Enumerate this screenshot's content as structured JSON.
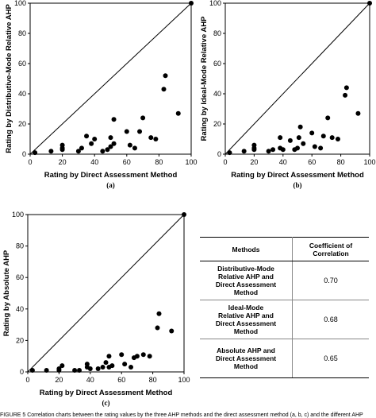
{
  "chart_data": [
    {
      "type": "scatter",
      "panel_label": "(a)",
      "xlabel": "Rating by Direct Assessment Method",
      "ylabel": "Rating by Distributive-Mode Relative AHP",
      "xlim": [
        0,
        100
      ],
      "ylim": [
        0,
        100
      ],
      "xticks": [
        0,
        20,
        40,
        60,
        80,
        100
      ],
      "yticks": [
        0,
        20,
        40,
        60,
        80,
        100
      ],
      "reference_line": "y = x",
      "x": [
        3,
        13,
        20,
        20,
        20,
        30,
        32,
        35,
        38,
        40,
        45,
        48,
        50,
        50,
        52,
        52,
        60,
        62,
        65,
        68,
        70,
        75,
        78,
        83,
        84,
        92,
        100
      ],
      "y": [
        1,
        2,
        3,
        4,
        6,
        2,
        4,
        12,
        7,
        10,
        2,
        3,
        5,
        11,
        23,
        7,
        15,
        6,
        4,
        15,
        24,
        11,
        10,
        43,
        52,
        27,
        100
      ]
    },
    {
      "type": "scatter",
      "panel_label": "(b)",
      "xlabel": "Rating by Direct Assessment Method",
      "ylabel": "Rating by Ideal-Mode Relative AHP",
      "xlim": [
        0,
        100
      ],
      "ylim": [
        0,
        100
      ],
      "xticks": [
        0,
        20,
        40,
        60,
        80,
        100
      ],
      "yticks": [
        0,
        20,
        40,
        60,
        80,
        100
      ],
      "reference_line": "y = x",
      "x": [
        3,
        13,
        20,
        20,
        20,
        30,
        33,
        38,
        38,
        40,
        45,
        48,
        50,
        51,
        52,
        54,
        60,
        62,
        66,
        68,
        71,
        74,
        78,
        83,
        84,
        92,
        100
      ],
      "y": [
        1,
        2,
        3,
        4,
        6,
        2,
        3,
        11,
        4,
        3,
        9,
        3,
        4,
        11,
        18,
        7,
        14,
        5,
        4,
        12,
        24,
        11,
        10,
        39,
        44,
        27,
        100
      ]
    },
    {
      "type": "scatter",
      "panel_label": "(c)",
      "xlabel": "Rating by Direct Assessment Method",
      "ylabel": "Rating by Absolute AHP",
      "xlim": [
        0,
        100
      ],
      "ylim": [
        0,
        100
      ],
      "xticks": [
        0,
        20,
        40,
        60,
        80,
        100
      ],
      "yticks": [
        0,
        20,
        40,
        60,
        80,
        100
      ],
      "reference_line": "y = x",
      "x": [
        3,
        12,
        20,
        20,
        22,
        30,
        33,
        38,
        38,
        40,
        45,
        48,
        50,
        52,
        52,
        54,
        60,
        62,
        66,
        68,
        70,
        74,
        78,
        83,
        84,
        92,
        100
      ],
      "y": [
        1,
        1,
        1,
        2,
        4,
        1,
        1,
        5,
        3,
        2,
        2,
        3,
        6,
        10,
        3,
        4,
        11,
        5,
        3,
        9,
        10,
        11,
        10,
        28,
        37,
        26,
        100
      ]
    },
    {
      "type": "table",
      "columns": [
        "Methods",
        "Coefficient of Correlation"
      ],
      "rows": [
        [
          "Distributive-Mode Relative AHP and Direct Assessment Method",
          "0.70"
        ],
        [
          "Ideal-Mode Relative AHP and Direct Assessment Method",
          "0.68"
        ],
        [
          "Absolute AHP and Direct Assessment Method",
          "0.65"
        ]
      ]
    }
  ],
  "table": {
    "header_methods": "Methods",
    "header_coefficient_line1": "Coefficient of",
    "header_coefficient_line2": "Correlation",
    "rows": [
      {
        "method_lines": [
          "Distributive-Mode",
          "Relative AHP and",
          "Direct Assessment",
          "Method"
        ],
        "value": "0.70"
      },
      {
        "method_lines": [
          "Ideal-Mode",
          "Relative AHP and",
          "Direct Assessment",
          "Method"
        ],
        "value": "0.68"
      },
      {
        "method_lines": [
          "Absolute AHP and",
          "Direct Assessment",
          "Method"
        ],
        "value": "0.65"
      }
    ]
  },
  "caption_fragment": "FIGURE 5   Correlation charts between the rating values by the three AHP methods and the direct assessment method (a, b, c) and the different AHP"
}
